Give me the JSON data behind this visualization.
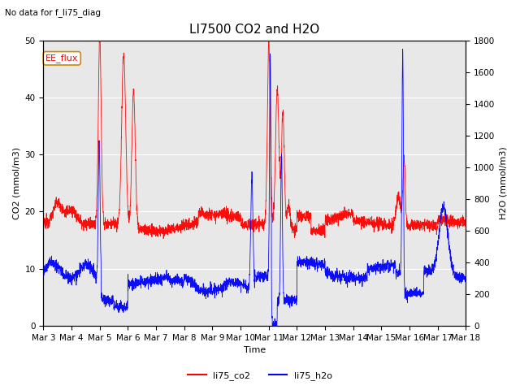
{
  "title": "LI7500 CO2 and H2O",
  "subtitle": "No data for f_li75_diag",
  "xlabel": "Time",
  "ylabel_left": "CO2 (mmol/m3)",
  "ylabel_right": "H2O (mmol/m3)",
  "ylim_left": [
    0,
    50
  ],
  "ylim_right": [
    0,
    1800
  ],
  "legend_labels": [
    "li75_co2",
    "li75_h2o"
  ],
  "annotation_text": "EE_flux",
  "background_color": "#e8e8e8",
  "xtick_labels": [
    "Mar 3",
    "Mar 4",
    "Mar 5",
    "Mar 6",
    "Mar 7",
    "Mar 8",
    "Mar 9",
    "Mar 10",
    "Mar 11",
    "Mar 12",
    "Mar 13",
    "Mar 14",
    "Mar 15",
    "Mar 16",
    "Mar 17",
    "Mar 18"
  ],
  "title_fontsize": 11,
  "label_fontsize": 8,
  "tick_fontsize": 7.5,
  "figsize": [
    6.4,
    4.8
  ],
  "dpi": 100
}
